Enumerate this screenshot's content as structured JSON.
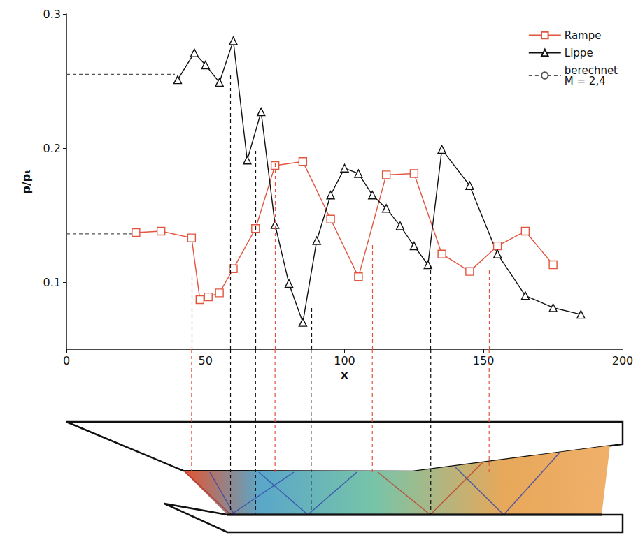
{
  "chart_data": {
    "type": "line",
    "x_label": "x",
    "y_label": "p/pₜ",
    "xlim": [
      0,
      200
    ],
    "xticks": [
      0,
      50,
      100,
      150,
      200
    ],
    "ylim": [
      0.05,
      0.3
    ],
    "yticks": [
      0.1,
      0.2,
      0.3
    ],
    "grid": false,
    "legend": "upper right",
    "series": [
      {
        "name": "Rampe",
        "color": "#e2553f",
        "marker": "square",
        "line_style": "solid",
        "x": [
          25,
          34,
          45,
          48,
          51,
          55,
          60,
          68,
          75,
          85,
          95,
          105,
          115,
          125,
          135,
          145,
          155,
          165,
          175
        ],
        "values": [
          0.137,
          0.138,
          0.133,
          0.087,
          0.089,
          0.092,
          0.11,
          0.14,
          0.187,
          0.19,
          0.147,
          0.104,
          0.18,
          0.181,
          0.121,
          0.108,
          0.127,
          0.138,
          0.113
        ],
        "reference_x": [
          45,
          75,
          110,
          152
        ],
        "reference_y": [
          0.105,
          0.19,
          0.13,
          0.11
        ]
      },
      {
        "name": "Lippe",
        "color": "#111111",
        "marker": "triangle",
        "line_style": "solid",
        "x": [
          40,
          46,
          50,
          55,
          60,
          65,
          70,
          75,
          80,
          85,
          90,
          95,
          100,
          105,
          110,
          115,
          120,
          125,
          130,
          135,
          145,
          155,
          165,
          175,
          185
        ],
        "values": [
          0.251,
          0.271,
          0.262,
          0.249,
          0.28,
          0.191,
          0.227,
          0.143,
          0.099,
          0.07,
          0.131,
          0.165,
          0.185,
          0.181,
          0.165,
          0.155,
          0.142,
          0.127,
          0.113,
          0.199,
          0.172,
          0.121,
          0.09,
          0.081,
          0.076
        ],
        "reference_x": [
          59,
          68,
          88,
          131
        ],
        "reference_y": [
          0.255,
          0.2,
          0.082,
          0.113
        ]
      },
      {
        "name": "berechnet\nM = 2,4",
        "color": "#555555",
        "marker": "none",
        "line_style": "dashed",
        "x": [
          0,
          39,
          null,
          0,
          24
        ],
        "values": [
          0.255,
          0.255,
          null,
          0.136,
          0.136
        ]
      }
    ]
  }
}
